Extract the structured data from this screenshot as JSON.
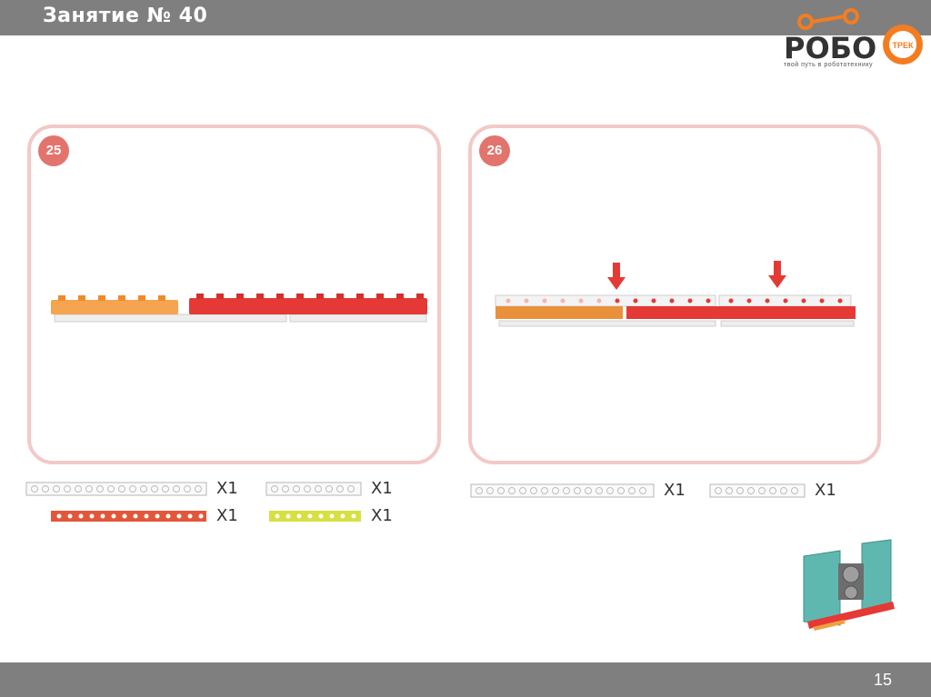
{
  "header": {
    "title": "Занятие № 40",
    "logo_text": "РОБО",
    "logo_badge": "ТРЕК",
    "logo_tagline": "твой путь в робототехнику"
  },
  "steps": [
    {
      "number": "25",
      "parts": [
        {
          "name": "white long beam",
          "qty": "X1"
        },
        {
          "name": "white short beam",
          "qty": "X1"
        },
        {
          "name": "red long plate",
          "qty": "X1"
        },
        {
          "name": "yellow short plate",
          "qty": "X1"
        }
      ]
    },
    {
      "number": "26",
      "parts": [
        {
          "name": "white long beam",
          "qty": "X1"
        },
        {
          "name": "white short beam",
          "qty": "X1"
        }
      ]
    }
  ],
  "footer": {
    "page": "15"
  },
  "colors": {
    "bar": "#7f7f7f",
    "frame": "#f2c9c6",
    "badge": "#e3746d",
    "red": "#e53935",
    "orange": "#f0a040"
  }
}
